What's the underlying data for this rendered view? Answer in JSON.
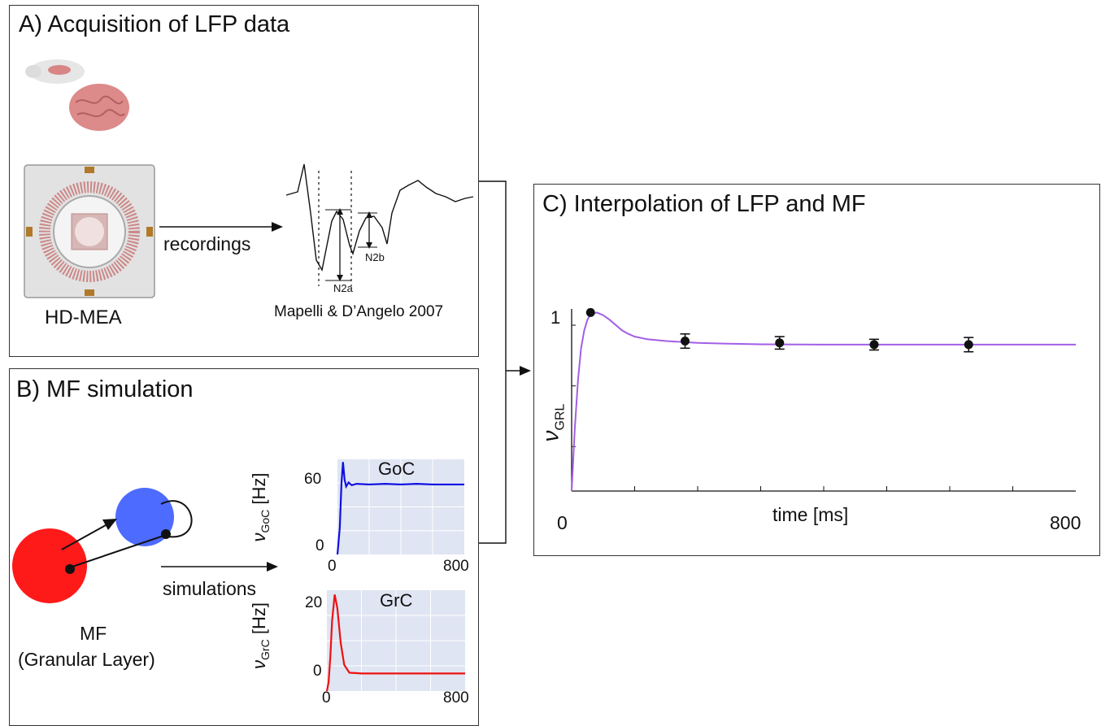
{
  "panel_a": {
    "title": "A) Acquisition of LFP data",
    "device_label": "HD-MEA",
    "arrow_label": "recordings",
    "trace_label_a": "N2a",
    "trace_label_b": "N2b",
    "citation": "Mapelli & D’Angelo 2007"
  },
  "panel_b": {
    "title": "B) MF simulation",
    "network_label_1": "MF",
    "network_label_2": "(Granular Layer)",
    "arrow_label": "simulations",
    "goc_plot": {
      "title": "GoC",
      "ylabel_var": "ν",
      "ylabel_sub": "GoC",
      "ylabel_unit": "[Hz]",
      "ytick_top": "60",
      "ytick_bottom": "0",
      "xtick_left": "0",
      "xtick_right": "800",
      "line_color": "#1010e0"
    },
    "grc_plot": {
      "title": "GrC",
      "ylabel_var": "ν",
      "ylabel_sub": "GrC",
      "ylabel_unit": "[Hz]",
      "ytick_top": "20",
      "ytick_bottom": "0",
      "xtick_left": "0",
      "xtick_right": "800",
      "line_color": "#ee1111"
    }
  },
  "panel_c": {
    "title": "C) Interpolation of LFP and MF",
    "ylabel_var": "ν",
    "ylabel_sub": "GRL",
    "ytick_top": "1",
    "xlabel": "time [ms]",
    "xtick_left": "0",
    "xtick_right": "800",
    "line_color": "#a35ee6"
  },
  "chart_data": [
    {
      "type": "line",
      "title": "GoC",
      "xlabel": "",
      "ylabel": "νGoC [Hz]",
      "xlim": [
        0,
        800
      ],
      "ylim": [
        0,
        70
      ],
      "series": [
        {
          "x": [
            0,
            15,
            25,
            35,
            45,
            55,
            70,
            90,
            120,
            200,
            300,
            400,
            500,
            600,
            700,
            800
          ],
          "values": [
            0,
            20,
            52,
            68,
            55,
            50,
            53,
            51,
            52,
            51.5,
            52,
            51.5,
            52,
            51.5,
            51.5,
            51.5
          ]
        }
      ]
    },
    {
      "type": "line",
      "title": "GrC",
      "xlabel": "",
      "ylabel": "νGrC [Hz]",
      "xlim": [
        0,
        800
      ],
      "ylim": [
        0,
        23
      ],
      "series": [
        {
          "x": [
            0,
            10,
            20,
            30,
            45,
            60,
            80,
            100,
            130,
            200,
            300,
            400,
            500,
            600,
            700,
            800
          ],
          "values": [
            0,
            2,
            8,
            16,
            22,
            19,
            11,
            6,
            4.2,
            4.0,
            4.0,
            4.0,
            4.0,
            4.0,
            4.0,
            4.0
          ]
        }
      ]
    },
    {
      "type": "line",
      "title": "",
      "xlabel": "time [ms]",
      "ylabel": "νGRL",
      "xlim": [
        0,
        800
      ],
      "ylim": [
        0,
        1.02
      ],
      "series": [
        {
          "x": [
            0,
            5,
            10,
            15,
            20,
            25,
            30,
            40,
            50,
            60,
            70,
            80,
            90,
            100,
            120,
            150,
            200,
            250,
            300,
            400,
            500,
            600,
            700,
            800
          ],
          "values": [
            0,
            0.35,
            0.62,
            0.8,
            0.9,
            0.96,
            0.99,
            1.0,
            0.985,
            0.96,
            0.93,
            0.9,
            0.88,
            0.865,
            0.85,
            0.84,
            0.83,
            0.825,
            0.822,
            0.82,
            0.82,
            0.82,
            0.82,
            0.82
          ]
        },
        {
          "x": [
            30,
            180,
            330,
            480,
            630
          ],
          "values": [
            1.0,
            0.84,
            0.83,
            0.82,
            0.82
          ],
          "errors": [
            0,
            0.04,
            0.035,
            0.03,
            0.04
          ]
        }
      ]
    }
  ]
}
